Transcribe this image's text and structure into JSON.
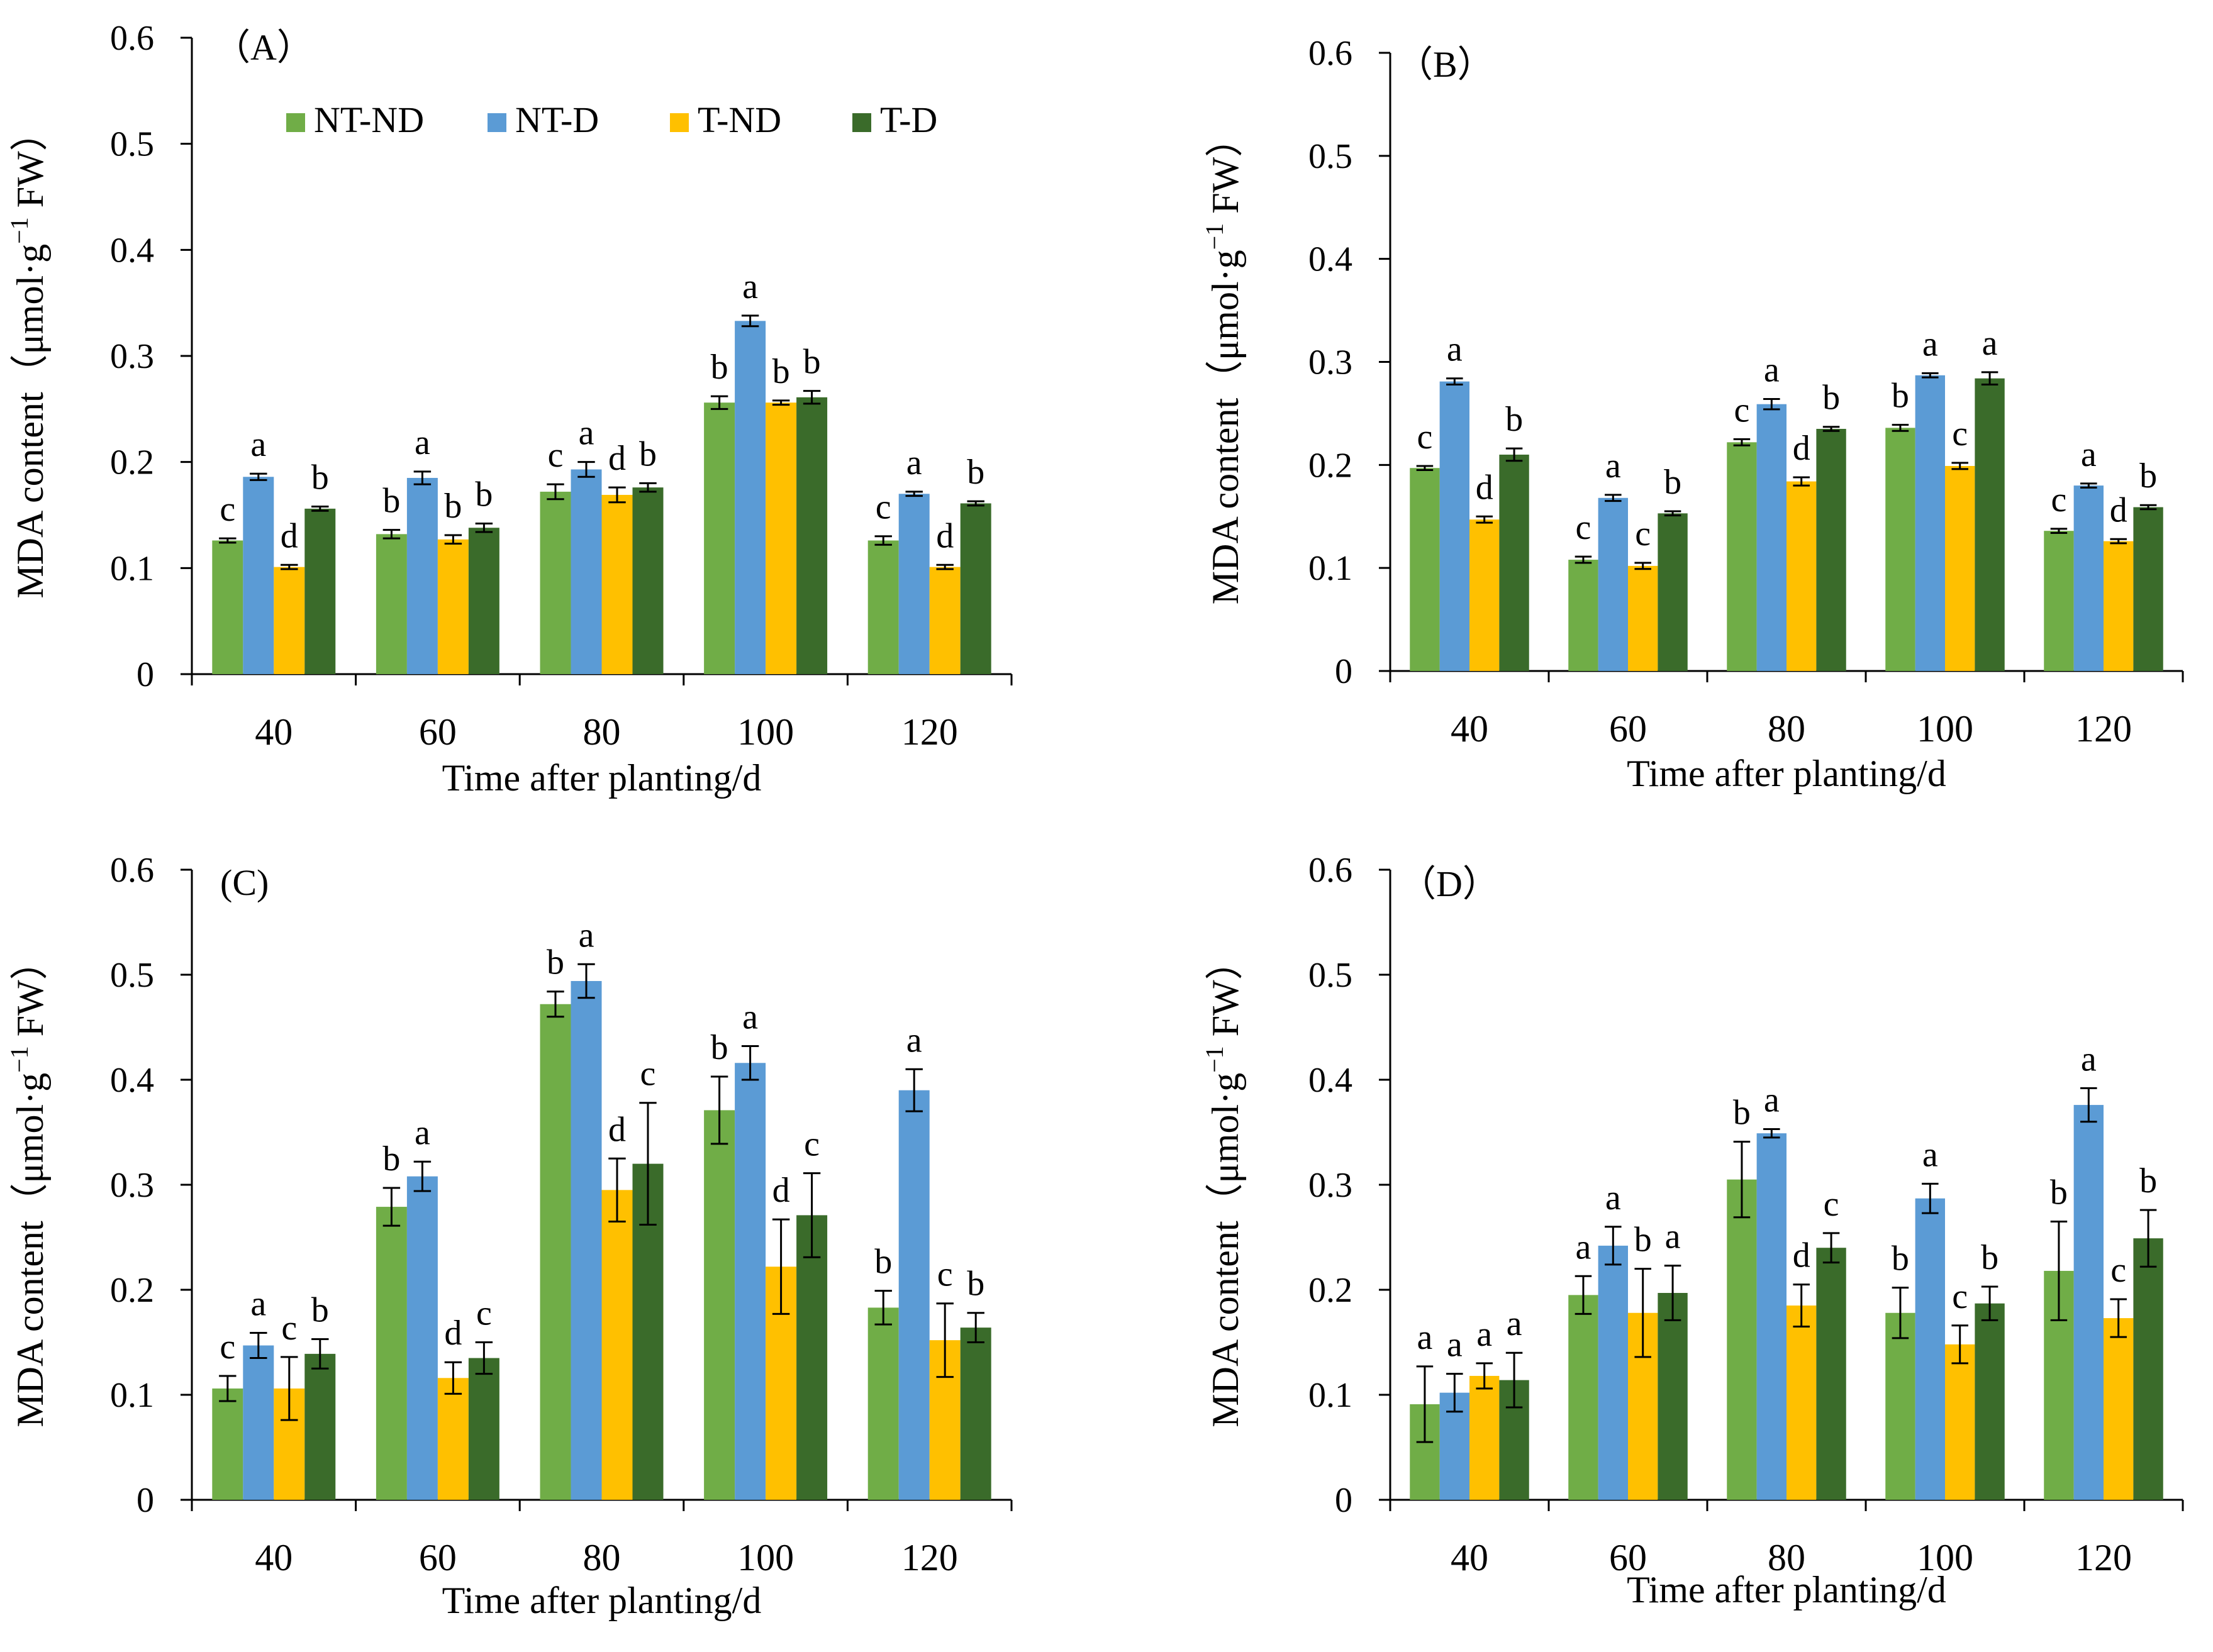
{
  "figure": {
    "series_colors": {
      "NT-ND": "#70AD47",
      "NT-D": "#5B9BD5",
      "T-ND": "#FFC000",
      "T-D": "#3A6B2A"
    }
  },
  "chart_data": [
    {
      "type": "bar",
      "panel_label": "（A）",
      "categories": [
        "40",
        "60",
        "80",
        "100",
        "120"
      ],
      "xlabel": "Time after planting/d",
      "ylabel_main": "MDA content（μmol·g",
      "ylabel_sup": "−1",
      "ylabel_tail": " FW）",
      "ylim": [
        0,
        0.6
      ],
      "yticks": [
        "0",
        "0.1",
        "0.2",
        "0.3",
        "0.4",
        "0.5",
        "0.6"
      ],
      "legend": [
        "NT-ND",
        "NT-D",
        "T-ND",
        "T-D"
      ],
      "legend_position": "top-left",
      "series": [
        {
          "name": "NT-ND",
          "values": [
            0.126,
            0.132,
            0.172,
            0.256,
            0.126
          ],
          "errors": [
            0.002,
            0.004,
            0.007,
            0.006,
            0.004
          ],
          "letters": [
            "c",
            "b",
            "c",
            "b",
            "c"
          ]
        },
        {
          "name": "NT-D",
          "values": [
            0.186,
            0.185,
            0.193,
            0.333,
            0.17
          ],
          "errors": [
            0.003,
            0.006,
            0.007,
            0.005,
            0.002
          ],
          "letters": [
            "a",
            "a",
            "a",
            "a",
            "a"
          ]
        },
        {
          "name": "T-ND",
          "values": [
            0.101,
            0.127,
            0.169,
            0.256,
            0.101
          ],
          "errors": [
            0.002,
            0.004,
            0.007,
            0.002,
            0.002
          ],
          "letters": [
            "d",
            "b",
            "d",
            "b",
            "d"
          ]
        },
        {
          "name": "T-D",
          "values": [
            0.156,
            0.138,
            0.176,
            0.261,
            0.161
          ],
          "errors": [
            0.002,
            0.004,
            0.004,
            0.006,
            0.002
          ],
          "letters": [
            "b",
            "b",
            "b",
            "b",
            "b"
          ]
        }
      ]
    },
    {
      "type": "bar",
      "panel_label": "（B）",
      "categories": [
        "40",
        "60",
        "80",
        "100",
        "120"
      ],
      "xlabel": "Time after planting/d",
      "ylabel_main": "MDA content（μmol·g",
      "ylabel_sup": "−1",
      "ylabel_tail": " FW）",
      "ylim": [
        0,
        0.6
      ],
      "yticks": [
        "0",
        "0.1",
        "0.2",
        "0.3",
        "0.4",
        "0.5",
        "0.6"
      ],
      "series": [
        {
          "name": "NT-ND",
          "values": [
            0.197,
            0.108,
            0.222,
            0.236,
            0.136
          ],
          "errors": [
            0.002,
            0.003,
            0.003,
            0.003,
            0.002
          ],
          "letters": [
            "c",
            "c",
            "c",
            "b",
            "c"
          ]
        },
        {
          "name": "NT-D",
          "values": [
            0.281,
            0.168,
            0.259,
            0.287,
            0.18
          ],
          "errors": [
            0.003,
            0.003,
            0.005,
            0.002,
            0.002
          ],
          "letters": [
            "a",
            "a",
            "a",
            "a",
            "a"
          ]
        },
        {
          "name": "T-ND",
          "values": [
            0.147,
            0.102,
            0.184,
            0.199,
            0.126
          ],
          "errors": [
            0.003,
            0.003,
            0.004,
            0.003,
            0.002
          ],
          "letters": [
            "d",
            "c",
            "d",
            "c",
            "d"
          ]
        },
        {
          "name": "T-D",
          "values": [
            0.21,
            0.153,
            0.235,
            0.284,
            0.159
          ],
          "errors": [
            0.006,
            0.002,
            0.002,
            0.006,
            0.002
          ],
          "letters": [
            "b",
            "b",
            "b",
            "a",
            "b"
          ]
        }
      ]
    },
    {
      "type": "bar",
      "panel_label": "(C)",
      "categories": [
        "40",
        "60",
        "80",
        "100",
        "120"
      ],
      "xlabel": "Time after planting/d",
      "ylabel_main": "MDA content（μmol·g",
      "ylabel_sup": "−1",
      "ylabel_tail": " FW）",
      "ylim": [
        0,
        0.6
      ],
      "yticks": [
        "0",
        "0.1",
        "0.2",
        "0.3",
        "0.4",
        "0.5",
        "0.6"
      ],
      "series": [
        {
          "name": "NT-ND",
          "values": [
            0.106,
            0.279,
            0.472,
            0.371,
            0.183
          ],
          "errors": [
            0.012,
            0.018,
            0.012,
            0.032,
            0.016
          ],
          "letters": [
            "c",
            "b",
            "b",
            "b",
            "b"
          ]
        },
        {
          "name": "NT-D",
          "values": [
            0.147,
            0.308,
            0.494,
            0.416,
            0.39
          ],
          "errors": [
            0.012,
            0.014,
            0.016,
            0.016,
            0.02
          ],
          "letters": [
            "a",
            "a",
            "a",
            "a",
            "a"
          ]
        },
        {
          "name": "T-ND",
          "values": [
            0.106,
            0.116,
            0.295,
            0.222,
            0.152
          ],
          "errors": [
            0.03,
            0.015,
            0.03,
            0.045,
            0.035
          ],
          "letters": [
            "c",
            "d",
            "d",
            "d",
            "c"
          ]
        },
        {
          "name": "T-D",
          "values": [
            0.139,
            0.135,
            0.32,
            0.271,
            0.164
          ],
          "errors": [
            0.014,
            0.015,
            0.058,
            0.04,
            0.014
          ],
          "letters": [
            "b",
            "c",
            "c",
            "c",
            "b"
          ]
        }
      ]
    },
    {
      "type": "bar",
      "panel_label": "（D）",
      "categories": [
        "40",
        "60",
        "80",
        "100",
        "120"
      ],
      "xlabel": "Time after planting/d",
      "ylabel_main": "MDA content（μmol·g",
      "ylabel_sup": "−1",
      "ylabel_tail": " FW）",
      "ylim": [
        0,
        0.6
      ],
      "yticks": [
        "0",
        "0.1",
        "0.2",
        "0.3",
        "0.4",
        "0.5",
        "0.6"
      ],
      "series": [
        {
          "name": "NT-ND",
          "values": [
            0.091,
            0.195,
            0.305,
            0.178,
            0.218
          ],
          "errors": [
            0.036,
            0.018,
            0.036,
            0.024,
            0.047
          ],
          "letters": [
            "a",
            "a",
            "b",
            "b",
            "b"
          ]
        },
        {
          "name": "NT-D",
          "values": [
            0.102,
            0.242,
            0.349,
            0.287,
            0.376
          ],
          "errors": [
            0.018,
            0.018,
            0.004,
            0.014,
            0.016
          ],
          "letters": [
            "a",
            "a",
            "a",
            "a",
            "a"
          ]
        },
        {
          "name": "T-ND",
          "values": [
            0.118,
            0.178,
            0.185,
            0.148,
            0.173
          ],
          "errors": [
            0.012,
            0.042,
            0.02,
            0.018,
            0.018
          ],
          "letters": [
            "a",
            "b",
            "d",
            "c",
            "c"
          ]
        },
        {
          "name": "T-D",
          "values": [
            0.114,
            0.197,
            0.24,
            0.187,
            0.249
          ],
          "errors": [
            0.026,
            0.026,
            0.014,
            0.016,
            0.027
          ],
          "letters": [
            "a",
            "a",
            "c",
            "b",
            "b"
          ]
        }
      ]
    }
  ]
}
